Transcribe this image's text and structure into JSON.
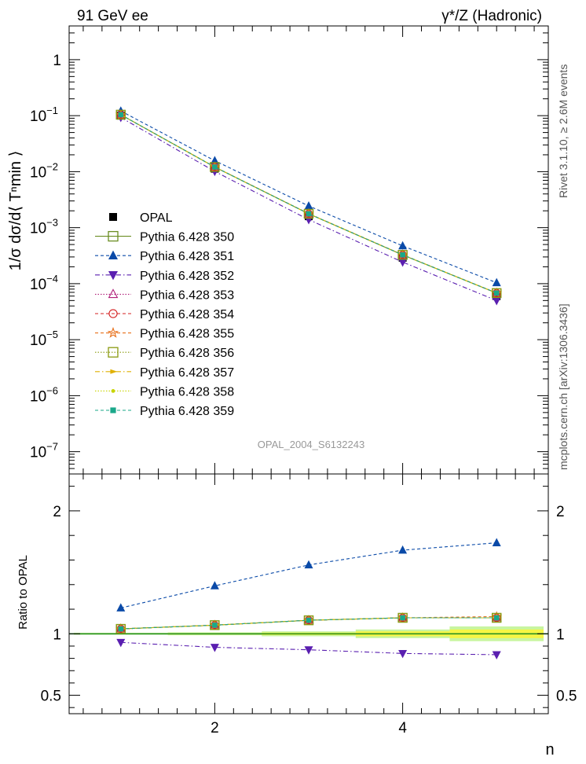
{
  "header": {
    "left": "91 GeV ee",
    "right": "γ*/Z (Hadronic)"
  },
  "side": {
    "top": "Rivet 3.1.10, ≥ 2.6M events",
    "bottom": "mcplots.cern.ch [arXiv:1306.3436]"
  },
  "watermark": "OPAL_2004_S6132243",
  "chart_data": [
    {
      "type": "line",
      "panel": "main",
      "ylabel": "1/σ dσ/d⟨ Tⁿmin ⟩",
      "yscale": "log",
      "ylim": [
        4e-08,
        4
      ],
      "xlim": [
        0.45,
        5.55
      ],
      "yticks": [
        1,
        0.1,
        0.01,
        0.001,
        0.0001,
        1e-05,
        1e-06,
        1e-07
      ],
      "ytick_labels": [
        {
          "base": "1",
          "exp": ""
        },
        {
          "base": "10",
          "exp": "−1"
        },
        {
          "base": "10",
          "exp": "−2"
        },
        {
          "base": "10",
          "exp": "−3"
        },
        {
          "base": "10",
          "exp": "−4"
        },
        {
          "base": "10",
          "exp": "−5"
        },
        {
          "base": "10",
          "exp": "−6"
        },
        {
          "base": "10",
          "exp": "−7"
        }
      ],
      "x": [
        1,
        2,
        3,
        4,
        5
      ],
      "series": [
        {
          "name": "OPAL",
          "values": [
            0.1,
            0.0113,
            0.0016,
            0.00029,
            6e-05
          ],
          "color": "#000000",
          "marker": "square",
          "line": "none"
        },
        {
          "name": "Pythia 6.428 350",
          "values": [
            0.104,
            0.0121,
            0.00177,
            0.000326,
            6.78e-05
          ],
          "color": "#6b8e23",
          "marker": "open-square",
          "line": "solid"
        },
        {
          "name": "Pythia 6.428 351",
          "values": [
            0.121,
            0.0157,
            0.00244,
            0.000473,
            0.000104
          ],
          "color": "#0a4aa8",
          "marker": "triangle-up",
          "line": "dashed"
        },
        {
          "name": "Pythia 6.428 352",
          "values": [
            0.093,
            0.0101,
            0.00139,
            0.000243,
            4.99e-05
          ],
          "color": "#5a1fb0",
          "marker": "triangle-down",
          "line": "dashdot"
        },
        {
          "name": "Pythia 6.428 353",
          "values": [
            0.104,
            0.0121,
            0.00177,
            0.000327,
            6.8e-05
          ],
          "color": "#b0207a",
          "marker": "open-triangle",
          "line": "dotted"
        },
        {
          "name": "Pythia 6.428 354",
          "values": [
            0.104,
            0.0121,
            0.00177,
            0.000327,
            6.79e-05
          ],
          "color": "#d42020",
          "marker": "open-circle",
          "line": "dashed"
        },
        {
          "name": "Pythia 6.428 355",
          "values": [
            0.104,
            0.0121,
            0.00178,
            0.000328,
            6.81e-05
          ],
          "color": "#e8701a",
          "marker": "open-star",
          "line": "dashed"
        },
        {
          "name": "Pythia 6.428 356",
          "values": [
            0.104,
            0.0121,
            0.00177,
            0.000326,
            6.78e-05
          ],
          "color": "#8a9a10",
          "marker": "open-square",
          "line": "dotted"
        },
        {
          "name": "Pythia 6.428 357",
          "values": [
            0.104,
            0.0121,
            0.00177,
            0.000327,
            6.8e-05
          ],
          "color": "#e0b000",
          "marker": "tri-right",
          "line": "dashdot"
        },
        {
          "name": "Pythia 6.428 358",
          "values": [
            0.104,
            0.0121,
            0.00177,
            0.000327,
            6.79e-05
          ],
          "color": "#c8d400",
          "marker": "dot",
          "line": "dotted"
        },
        {
          "name": "Pythia 6.428 359",
          "values": [
            0.104,
            0.0121,
            0.00177,
            0.000327,
            6.8e-05
          ],
          "color": "#1aa88a",
          "marker": "small-square",
          "line": "dashed"
        }
      ],
      "legend_position": "lower-left"
    },
    {
      "type": "line",
      "panel": "ratio",
      "ylabel": "Ratio to OPAL",
      "xlabel": "n",
      "ylim": [
        0.35,
        2.3
      ],
      "yticks": [
        0.5,
        1,
        2
      ],
      "ytick_labels": [
        "0.5",
        "1",
        "2"
      ],
      "xticks": [
        2,
        4
      ],
      "xtick_labels": [
        "2",
        "4"
      ],
      "x": [
        1,
        2,
        3,
        4,
        5
      ],
      "band": {
        "x_edges": [
          0.5,
          1.5,
          2.5,
          3.5,
          4.5,
          5.5
        ],
        "stat": [
          0.004,
          0.006,
          0.01,
          0.02,
          0.035
        ],
        "total": [
          0.008,
          0.012,
          0.02,
          0.035,
          0.06
        ],
        "color_stat": "#f5f544",
        "color_total": "#c8f5a0"
      },
      "series": [
        {
          "name": "Pythia 6.428 350",
          "values": [
            1.04,
            1.07,
            1.11,
            1.13,
            1.13
          ]
        },
        {
          "name": "Pythia 6.428 351",
          "values": [
            1.21,
            1.39,
            1.56,
            1.68,
            1.74
          ]
        },
        {
          "name": "Pythia 6.428 352",
          "values": [
            0.93,
            0.89,
            0.87,
            0.84,
            0.83
          ]
        },
        {
          "name": "Pythia 6.428 353",
          "values": [
            1.04,
            1.07,
            1.11,
            1.13,
            1.13
          ]
        },
        {
          "name": "Pythia 6.428 354",
          "values": [
            1.04,
            1.07,
            1.11,
            1.13,
            1.13
          ]
        },
        {
          "name": "Pythia 6.428 355",
          "values": [
            1.04,
            1.07,
            1.11,
            1.13,
            1.14
          ]
        },
        {
          "name": "Pythia 6.428 356",
          "values": [
            1.04,
            1.07,
            1.11,
            1.13,
            1.13
          ]
        },
        {
          "name": "Pythia 6.428 357",
          "values": [
            1.04,
            1.07,
            1.11,
            1.13,
            1.13
          ]
        },
        {
          "name": "Pythia 6.428 358",
          "values": [
            1.04,
            1.07,
            1.11,
            1.13,
            1.13
          ]
        },
        {
          "name": "Pythia 6.428 359",
          "values": [
            1.04,
            1.07,
            1.11,
            1.13,
            1.13
          ]
        }
      ]
    }
  ]
}
